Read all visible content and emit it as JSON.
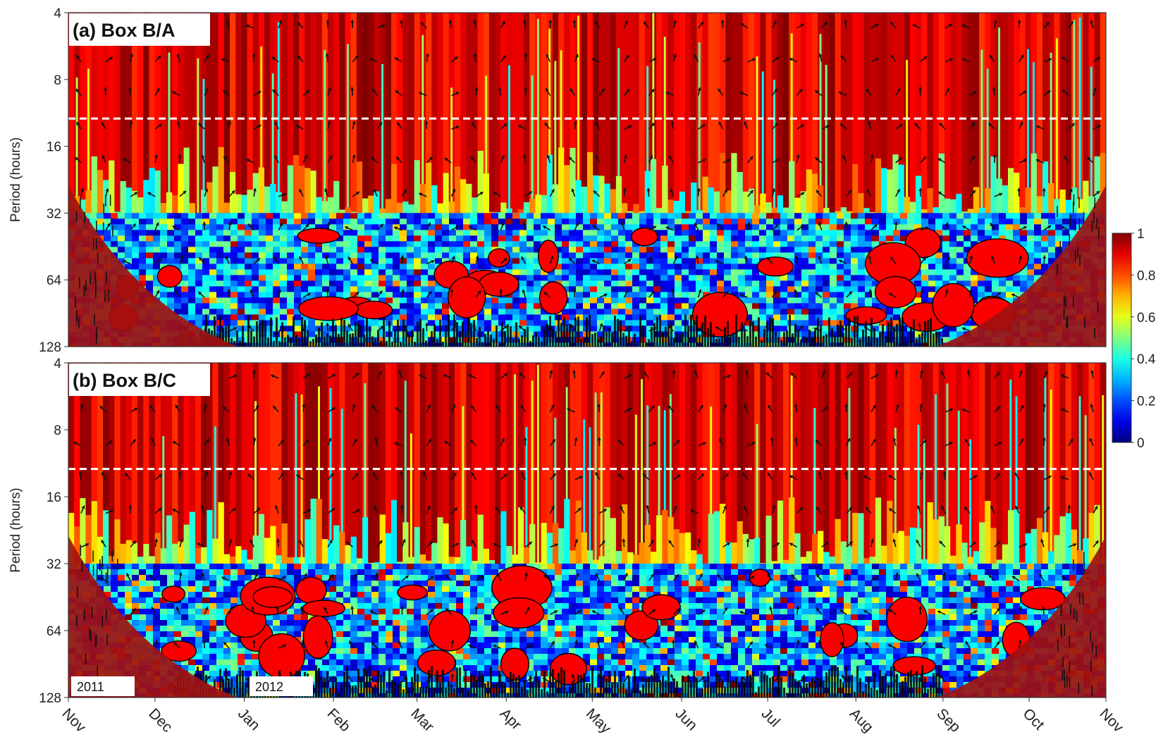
{
  "chart_data": {
    "type": "heatmap",
    "subtype": "wavelet-coherence",
    "panels": [
      {
        "id": "a",
        "title": "(a) Box B/A"
      },
      {
        "id": "b",
        "title": "(b) Box B/C"
      }
    ],
    "ylabel": "Period (hours)",
    "yscale": "log2",
    "ylim": [
      4,
      128
    ],
    "yticks": [
      4,
      8,
      16,
      32,
      64,
      128
    ],
    "ytick_labels": [
      "4",
      "8",
      "16",
      "32",
      "64",
      "128"
    ],
    "x_months": [
      "Nov",
      "Dec",
      "Jan",
      "Feb",
      "Mar",
      "Apr",
      "May",
      "Jun",
      "Jul",
      "Aug",
      "Sep",
      "Oct",
      "Nov"
    ],
    "x_month_fraction": [
      0,
      0.0835,
      0.1695,
      0.2555,
      0.336,
      0.422,
      0.505,
      0.591,
      0.674,
      0.759,
      0.843,
      0.926,
      1.0
    ],
    "year_labels": [
      "2011",
      "2012"
    ],
    "reference_period_hours": 12,
    "colorbar": {
      "ticks": [
        0,
        0.2,
        0.4,
        0.6,
        0.8,
        1
      ],
      "tick_labels": [
        "0",
        "0.2",
        "0.4",
        "0.6",
        "0.8",
        "1"
      ],
      "range": [
        0,
        1
      ],
      "colormap": "jet"
    },
    "colors": {
      "high_coherence": "#c8190f",
      "low_coherence": "#1634d8",
      "cone_of_influence": "#a01010",
      "reference_line": "#ffffff"
    }
  }
}
